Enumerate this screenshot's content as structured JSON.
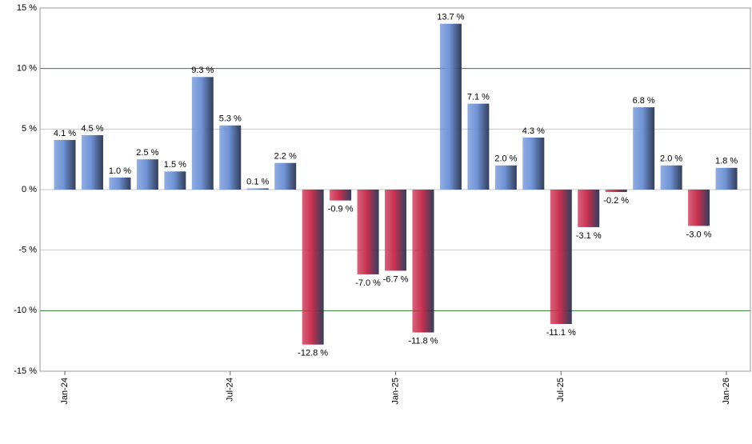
{
  "chart_data": {
    "type": "bar",
    "categories": [
      "Jan-24",
      null,
      null,
      null,
      null,
      null,
      "Jul-24",
      null,
      null,
      null,
      null,
      null,
      "Jan-25",
      null,
      null,
      null,
      null,
      null,
      "Jul-25",
      null,
      null,
      null,
      null,
      null,
      "Jan-26"
    ],
    "values": [
      4.1,
      4.5,
      1.0,
      2.5,
      1.5,
      9.3,
      5.3,
      0.1,
      2.2,
      -12.8,
      -0.9,
      -7.0,
      -6.7,
      -11.8,
      13.7,
      7.1,
      2.0,
      4.3,
      -11.1,
      -3.1,
      -0.2,
      6.8,
      2.0,
      -3.0,
      1.8
    ],
    "value_labels": [
      "4.1 %",
      "4.5 %",
      "1.0 %",
      "2.5 %",
      "1.5 %",
      "9.3 %",
      "5.3 %",
      "0.1 %",
      "2.2 %",
      "-12.8 %",
      "-0.9 %",
      "-7.0 %",
      "-6.7 %",
      "-11.8 %",
      "13.7 %",
      "7.1 %",
      "2.0 %",
      "4.3 %",
      "-11.1 %",
      "-3.1 %",
      "-0.2 %",
      "6.8 %",
      "2.0 %",
      "-3.0 %",
      "1.8 %"
    ],
    "color": "#6f93d6",
    "negative_color": "#c8304f",
    "ylim": [
      -15,
      15
    ],
    "yticks": [
      {
        "value": -15,
        "label": "-15 %"
      },
      {
        "value": -10,
        "label": "-10 %"
      },
      {
        "value": -5,
        "label": "-5 %"
      },
      {
        "value": 0,
        "label": "0 %"
      },
      {
        "value": 5,
        "label": "5 %"
      },
      {
        "value": 10,
        "label": "10 %"
      },
      {
        "value": 15,
        "label": "15 %"
      }
    ],
    "grid": true,
    "reference_lines": [
      -10,
      10
    ],
    "reference_color": "#2e7d32"
  }
}
